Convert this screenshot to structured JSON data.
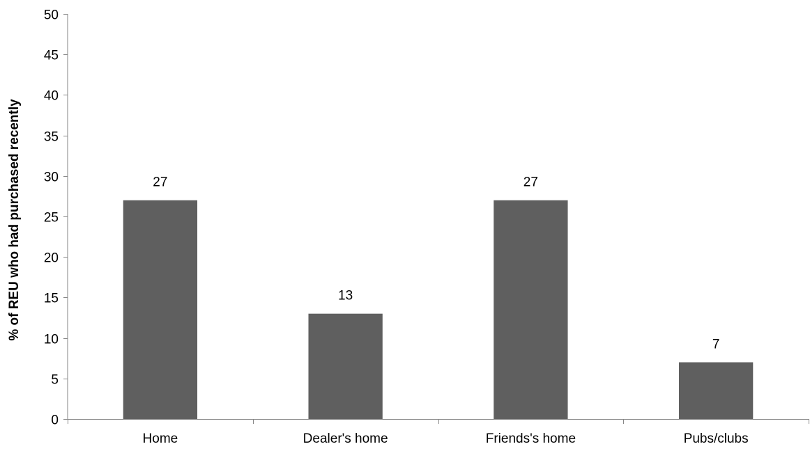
{
  "chart_data": {
    "type": "bar",
    "categories": [
      "Home",
      "Dealer's home",
      "Friends's home",
      "Pubs/clubs"
    ],
    "values": [
      27,
      13,
      27,
      7
    ],
    "data_labels": [
      "27",
      "13",
      "27",
      "7"
    ],
    "title": "",
    "xlabel": "",
    "ylabel": "% of REU who had purchased recently",
    "ylim": [
      0,
      50
    ],
    "yticks": [
      0,
      5,
      10,
      15,
      20,
      25,
      30,
      35,
      40,
      45,
      50
    ],
    "grid": false,
    "legend": "none",
    "bar_color": "#5f5f5f",
    "axis_color": "#868686"
  }
}
